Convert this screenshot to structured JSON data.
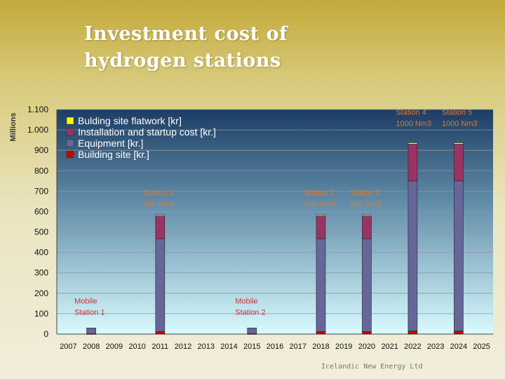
{
  "slide": {
    "title_line1": "Investment cost of",
    "title_line2": "hydrogen stations",
    "footer": "Icelandic New Energy Ltd"
  },
  "colors": {
    "flatwork": "#ffff00",
    "installation": "#993366",
    "equipment": "#666699",
    "building": "#cc0000",
    "annotation_red": "#cc3333",
    "annotation_orange": "#e07a30",
    "plot_top": "#1c3d64",
    "plot_bottom": "#d8fbff"
  },
  "chart_data": {
    "type": "bar",
    "stacked": true,
    "title": "",
    "xlabel": "",
    "ylabel": "Millions",
    "ylim": [
      0,
      1100
    ],
    "yticks": [
      {
        "value": 0,
        "label": "0"
      },
      {
        "value": 100,
        "label": "100"
      },
      {
        "value": 200,
        "label": "200"
      },
      {
        "value": 300,
        "label": "300"
      },
      {
        "value": 400,
        "label": "400"
      },
      {
        "value": 500,
        "label": "500"
      },
      {
        "value": 600,
        "label": "600"
      },
      {
        "value": 700,
        "label": "700"
      },
      {
        "value": 800,
        "label": "800"
      },
      {
        "value": 900,
        "label": "900"
      },
      {
        "value": 1000,
        "label": "1.000"
      },
      {
        "value": 1100,
        "label": "1.100"
      }
    ],
    "grid": true,
    "legend_position": "top-left",
    "categories": [
      "2007",
      "2008",
      "2009",
      "2010",
      "2011",
      "2012",
      "2013",
      "2014",
      "2015",
      "2016",
      "2017",
      "2018",
      "2019",
      "2020",
      "2021",
      "2022",
      "2023",
      "2024",
      "2025"
    ],
    "series": [
      {
        "name": "Building site [kr.]",
        "color": "#cc0000",
        "values": [
          0,
          2,
          0,
          0,
          12,
          0,
          0,
          0,
          2,
          0,
          0,
          12,
          0,
          12,
          0,
          15,
          0,
          15,
          0
        ]
      },
      {
        "name": "Equipment [kr.]",
        "color": "#666699",
        "values": [
          0,
          28,
          0,
          0,
          455,
          0,
          0,
          0,
          28,
          0,
          0,
          455,
          0,
          455,
          0,
          735,
          0,
          735,
          0
        ]
      },
      {
        "name": "Installation and startup cost [kr.]",
        "color": "#993366",
        "values": [
          0,
          0,
          0,
          0,
          110,
          0,
          0,
          0,
          0,
          0,
          0,
          110,
          0,
          110,
          0,
          180,
          0,
          180,
          0
        ]
      },
      {
        "name": "Bulding site flatwork [kr]",
        "color": "#ffff00",
        "values": [
          0,
          0,
          0,
          0,
          5,
          0,
          0,
          0,
          0,
          0,
          0,
          5,
          0,
          5,
          0,
          7,
          0,
          7,
          0
        ]
      }
    ],
    "legend_order": [
      3,
      2,
      1,
      0
    ],
    "annotations": [
      {
        "lines": [
          "Mobile",
          "Station 1"
        ],
        "x": "2008",
        "y": 150,
        "color": "#cc3333"
      },
      {
        "lines": [
          "Station 1",
          "500 Nm3"
        ],
        "x": "2011",
        "y": 680,
        "color": "#e07a30"
      },
      {
        "lines": [
          "Mobile",
          "Station 2"
        ],
        "x": "2015",
        "y": 150,
        "color": "#cc3333"
      },
      {
        "lines": [
          "Station 2",
          "500 Nm3"
        ],
        "x": "2018",
        "y": 680,
        "color": "#e07a30"
      },
      {
        "lines": [
          "Station 3",
          "500 Nm3"
        ],
        "x": "2020",
        "y": 680,
        "color": "#e07a30"
      },
      {
        "lines": [
          "Station 4",
          "1000 Nm3"
        ],
        "x": "2022",
        "y": 1075,
        "color": "#e07a30"
      },
      {
        "lines": [
          "Station 5",
          "1000 Nm3"
        ],
        "x": "2024",
        "y": 1075,
        "color": "#e07a30"
      }
    ]
  }
}
